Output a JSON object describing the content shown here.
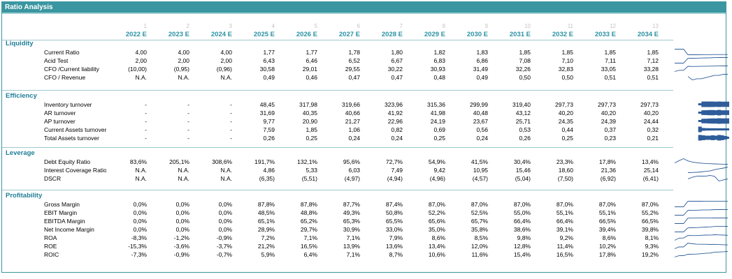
{
  "title": "Ratio Analysis",
  "column_indices": [
    "1",
    "2",
    "3",
    "4",
    "5",
    "6",
    "7",
    "8",
    "9",
    "10",
    "11",
    "12",
    "13"
  ],
  "years": [
    "2022 E",
    "2023 E",
    "2024 E",
    "2025 E",
    "2026 E",
    "2027 E",
    "2028 E",
    "2029 E",
    "2030 E",
    "2031 E",
    "2032 E",
    "2033 E",
    "2034 E"
  ],
  "colors": {
    "header_bg": "#3a96a0",
    "year_text": "#2b92a3",
    "section_text": "#1f7d96",
    "sparkline": "#2f5d9a",
    "bar": "#2f5d9a"
  },
  "sections": [
    {
      "name": "Liquidity",
      "rows": [
        {
          "label": "Current Ratio",
          "values": [
            "4,00",
            "4,00",
            "4,00",
            "1,77",
            "1,77",
            "1,78",
            "1,80",
            "1,82",
            "1,83",
            "1,85",
            "1,85",
            "1,85",
            "1,85"
          ],
          "spark": "line"
        },
        {
          "label": "Acid Test",
          "values": [
            "2,00",
            "2,00",
            "2,00",
            "6,43",
            "6,46",
            "6,52",
            "6,67",
            "6,83",
            "6,86",
            "7,08",
            "7,10",
            "7,11",
            "7,12"
          ],
          "spark": "line"
        },
        {
          "label": "CFO /Current liability",
          "values": [
            "(10,00)",
            "(0,95)",
            "(0,96)",
            "30,58",
            "29,01",
            "29,55",
            "30,22",
            "30,93",
            "31,49",
            "32,26",
            "32,83",
            "33,05",
            "33,28"
          ],
          "spark": "line"
        },
        {
          "label": "CFO / Revenue",
          "values": [
            "N.A.",
            "N.A.",
            "N.A.",
            "0,49",
            "0,46",
            "0,47",
            "0,47",
            "0,48",
            "0,49",
            "0,50",
            "0,50",
            "0,51",
            "0,51"
          ],
          "spark": "line"
        }
      ]
    },
    {
      "name": "Efficiency",
      "rows": [
        {
          "label": "Inventory turnover",
          "values": [
            "-",
            "-",
            "-",
            "48,45",
            "317,98",
            "319,66",
            "323,96",
            "315,36",
            "299,99",
            "319,40",
            "297,73",
            "297,73",
            "297,73"
          ],
          "spark": "bar"
        },
        {
          "label": "AR turnover",
          "values": [
            "-",
            "-",
            "-",
            "31,69",
            "40,35",
            "40,66",
            "41,92",
            "41,98",
            "40,48",
            "43,12",
            "40,20",
            "40,20",
            "40,20"
          ],
          "spark": "bar"
        },
        {
          "label": "AP turnover",
          "values": [
            "-",
            "-",
            "-",
            "9,77",
            "20,90",
            "21,27",
            "22,96",
            "24,19",
            "23,67",
            "25,71",
            "24,35",
            "24,39",
            "24,44"
          ],
          "spark": "bar"
        },
        {
          "label": "Current Assets turnover",
          "values": [
            "-",
            "-",
            "-",
            "7,59",
            "1,85",
            "1,06",
            "0,82",
            "0,69",
            "0,56",
            "0,53",
            "0,44",
            "0,37",
            "0,32"
          ],
          "spark": "bar"
        },
        {
          "label": "Total Assets turnover",
          "values": [
            "-",
            "-",
            "-",
            "0,26",
            "0,25",
            "0,24",
            "0,24",
            "0,25",
            "0,24",
            "0,26",
            "0,25",
            "0,23",
            "0,21"
          ],
          "spark": "bar"
        }
      ]
    },
    {
      "name": "Leverage",
      "rows": [
        {
          "label": "Debt Equity Ratio",
          "values": [
            "83,6%",
            "205,1%",
            "308,6%",
            "191,7%",
            "132,1%",
            "95,6%",
            "72,7%",
            "54,9%",
            "41,5%",
            "30,4%",
            "23,3%",
            "17,8%",
            "13,4%"
          ],
          "spark": "line"
        },
        {
          "label": "Interest Coverage Ratio",
          "values": [
            "N.A.",
            "N.A.",
            "N.A.",
            "4,86",
            "5,33",
            "6,03",
            "7,49",
            "9,42",
            "10,95",
            "15,46",
            "18,60",
            "21,36",
            "25,14"
          ],
          "spark": "line"
        },
        {
          "label": "DSCR",
          "values": [
            "N.A.",
            "N.A.",
            "N.A.",
            "(6,35)",
            "(5,51)",
            "(4,97)",
            "(4,94)",
            "(4,96)",
            "(4,57)",
            "(5,04)",
            "(7,50)",
            "(6,92)",
            "(6,41)"
          ],
          "spark": "line"
        }
      ]
    },
    {
      "name": "Profitability",
      "rows": [
        {
          "label": "Gross Margin",
          "values": [
            "0,0%",
            "0,0%",
            "0,0%",
            "87,8%",
            "87,8%",
            "87,7%",
            "87,4%",
            "87,0%",
            "87,0%",
            "87,0%",
            "87,0%",
            "87,0%",
            "87,0%"
          ],
          "spark": "line"
        },
        {
          "label": "EBIT Margin",
          "values": [
            "0,0%",
            "0,0%",
            "0,0%",
            "48,5%",
            "48,8%",
            "49,3%",
            "50,8%",
            "52,2%",
            "52,5%",
            "55,0%",
            "55,1%",
            "55,1%",
            "55,2%"
          ],
          "spark": "line"
        },
        {
          "label": "EBITDA Margin",
          "values": [
            "0,0%",
            "0,0%",
            "0,0%",
            "65,1%",
            "65,2%",
            "65,3%",
            "65,5%",
            "65,6%",
            "65,7%",
            "66,4%",
            "66,4%",
            "66,5%",
            "66,5%"
          ],
          "spark": "line"
        },
        {
          "label": "Net Income Margin",
          "values": [
            "0,0%",
            "0,0%",
            "0,0%",
            "28,9%",
            "29,7%",
            "30,9%",
            "33,0%",
            "35,0%",
            "35,8%",
            "38,6%",
            "39,1%",
            "39,4%",
            "39,8%"
          ],
          "spark": "line"
        },
        {
          "label": "ROA",
          "values": [
            "-8,3%",
            "-1,2%",
            "-0,9%",
            "7,2%",
            "7,1%",
            "7,1%",
            "7,9%",
            "8,6%",
            "8,5%",
            "9,8%",
            "9,2%",
            "8,6%",
            "8,1%"
          ],
          "spark": "line"
        },
        {
          "label": "ROE",
          "values": [
            "-15,3%",
            "-3,6%",
            "-3,7%",
            "21,2%",
            "16,5%",
            "13,9%",
            "13,6%",
            "13,4%",
            "12,0%",
            "12,8%",
            "11,4%",
            "10,2%",
            "9,3%"
          ],
          "spark": "line"
        },
        {
          "label": "ROIC",
          "values": [
            "-7,3%",
            "-0,9%",
            "-0,7%",
            "5,9%",
            "6,4%",
            "7,1%",
            "8,7%",
            "10,6%",
            "11,6%",
            "15,4%",
            "16,5%",
            "17,8%",
            "19,2%"
          ],
          "spark": "line"
        }
      ]
    }
  ]
}
